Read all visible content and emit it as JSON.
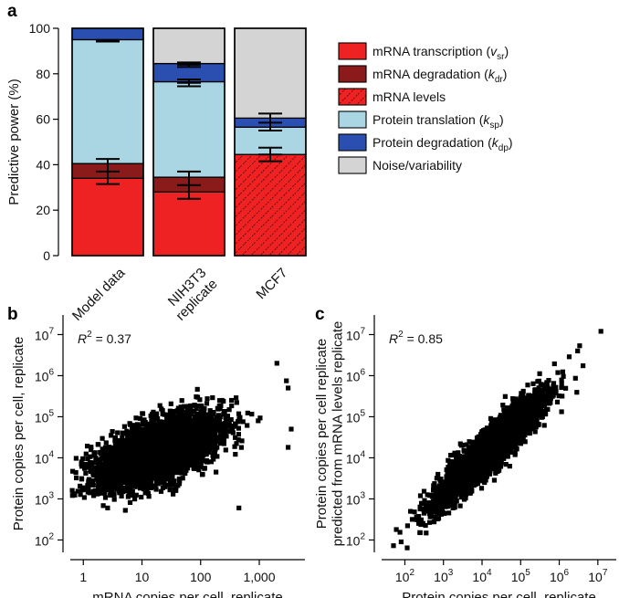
{
  "panel_labels": [
    "a",
    "b",
    "c"
  ],
  "chart_data": [
    {
      "panel": "a",
      "type": "bar",
      "stacked": true,
      "ylabel": "Predictive power (%)",
      "ylim": [
        0,
        100
      ],
      "yticks": [
        "0",
        "20",
        "40",
        "60",
        "80",
        "100"
      ],
      "categories": [
        {
          "label": "Model data",
          "label2": ""
        },
        {
          "label": "NIH3T3",
          "label2": "replicate"
        },
        {
          "label": "MCF7",
          "label2": ""
        }
      ],
      "series": [
        {
          "name": "mRNA transcription",
          "param": "v",
          "sub": "sr",
          "color": "#ee2222",
          "values": [
            34,
            28,
            null
          ]
        },
        {
          "name": "mRNA degradation",
          "param": "k",
          "sub": "dr",
          "color": "#8b1a1a",
          "values": [
            6.5,
            6.5,
            null
          ]
        },
        {
          "name": "mRNA levels",
          "color": "#ee2222",
          "pattern": "hatched",
          "values": [
            null,
            null,
            44.5
          ]
        },
        {
          "name": "Protein translation",
          "param": "k",
          "sub": "sp",
          "color": "#a9d6e2",
          "values": [
            54.5,
            42,
            12
          ]
        },
        {
          "name": "Protein degradation",
          "param": "k",
          "sub": "dp",
          "color": "#2b4fb0",
          "values": [
            5,
            8,
            4
          ]
        },
        {
          "name": "Noise/variability",
          "color": "#d4d4d4",
          "values": [
            0,
            15.5,
            39.5
          ]
        }
      ],
      "error_bars": [
        [
          {
            "y": 37,
            "low": 31.5,
            "high": 42.5
          },
          {
            "y": 94.5,
            "low": 94.2,
            "high": 94.9
          }
        ],
        [
          {
            "y": 31,
            "low": 25,
            "high": 37
          },
          {
            "y": 76,
            "low": 74.5,
            "high": 77.5
          },
          {
            "y": 84,
            "low": 83,
            "high": 85
          }
        ],
        [
          {
            "y": 44.5,
            "low": 41.5,
            "high": 47.5
          },
          {
            "y": 58.5,
            "low": 55,
            "high": 62.5
          }
        ]
      ]
    },
    {
      "panel": "b",
      "type": "scatter",
      "xlabel": "mRNA copies per cell, replicate",
      "ylabel": "Protein copies per cell, replicate",
      "xscale": "log",
      "yscale": "log",
      "xlim": [
        0.6,
        6000
      ],
      "ylim": [
        50,
        30000000
      ],
      "xticks": [
        {
          "v": 1,
          "t": "1"
        },
        {
          "v": 10,
          "t": "10"
        },
        {
          "v": 100,
          "t": "100"
        },
        {
          "v": 1000,
          "t": "1,000"
        }
      ],
      "yticks": [
        {
          "v": 100,
          "m": "10",
          "e": "2"
        },
        {
          "v": 1000,
          "m": "10",
          "e": "3"
        },
        {
          "v": 10000,
          "m": "10",
          "e": "4"
        },
        {
          "v": 100000,
          "m": "10",
          "e": "5"
        },
        {
          "v": 1000000,
          "m": "10",
          "e": "6"
        },
        {
          "v": 10000000,
          "m": "10",
          "e": "7"
        }
      ],
      "r2_label": "R",
      "r2_exp": "2",
      "r2_value": " = 0.37",
      "r2": 0.37,
      "x_center_log": 1.25,
      "y_center_log": 4.15,
      "x_sd_log": 0.5,
      "slope": 0.85,
      "n_points": 5000,
      "outliers": [
        [
          2000,
          2000000
        ],
        [
          3100,
          18000
        ],
        [
          3500,
          50000
        ],
        [
          2900,
          750000
        ],
        [
          1.5,
          1200
        ],
        [
          2.6,
          600
        ],
        [
          450,
          600
        ],
        [
          3100,
          500000
        ]
      ],
      "color": "#000000"
    },
    {
      "panel": "c",
      "type": "scatter",
      "xlabel": "Protein copies per cell, replicate",
      "ylabel": "Protein copies per cell replicate predicted from mRNA levels replicate",
      "ylabel_lines": [
        "Protein copies per cell replicate",
        "predicted from mRNA levels replicate"
      ],
      "xscale": "log",
      "yscale": "log",
      "xlim": [
        25,
        30000000
      ],
      "ylim": [
        50,
        30000000
      ],
      "xticks": [
        {
          "v": 100,
          "m": "10",
          "e": "2"
        },
        {
          "v": 1000,
          "m": "10",
          "e": "3"
        },
        {
          "v": 10000,
          "m": "10",
          "e": "4"
        },
        {
          "v": 100000,
          "m": "10",
          "e": "5"
        },
        {
          "v": 1000000,
          "m": "10",
          "e": "6"
        },
        {
          "v": 10000000,
          "m": "10",
          "e": "7"
        }
      ],
      "yticks": [
        {
          "v": 100,
          "m": "10",
          "e": "2"
        },
        {
          "v": 1000,
          "m": "10",
          "e": "3"
        },
        {
          "v": 10000,
          "m": "10",
          "e": "4"
        },
        {
          "v": 100000,
          "m": "10",
          "e": "5"
        },
        {
          "v": 1000000,
          "m": "10",
          "e": "6"
        },
        {
          "v": 10000000,
          "m": "10",
          "e": "7"
        }
      ],
      "r2_label": "R",
      "r2_exp": "2",
      "r2_value": " = 0.85",
      "r2": 0.85,
      "x_center_log": 4.15,
      "y_center_log": 4.15,
      "x_sd_log": 0.65,
      "slope": 0.95,
      "n_points": 5000,
      "outliers": [
        [
          12000000,
          12000000
        ],
        [
          60,
          180
        ],
        [
          80,
          90
        ],
        [
          250,
          150
        ],
        [
          3000000,
          4000000
        ]
      ],
      "color": "#000000"
    }
  ]
}
